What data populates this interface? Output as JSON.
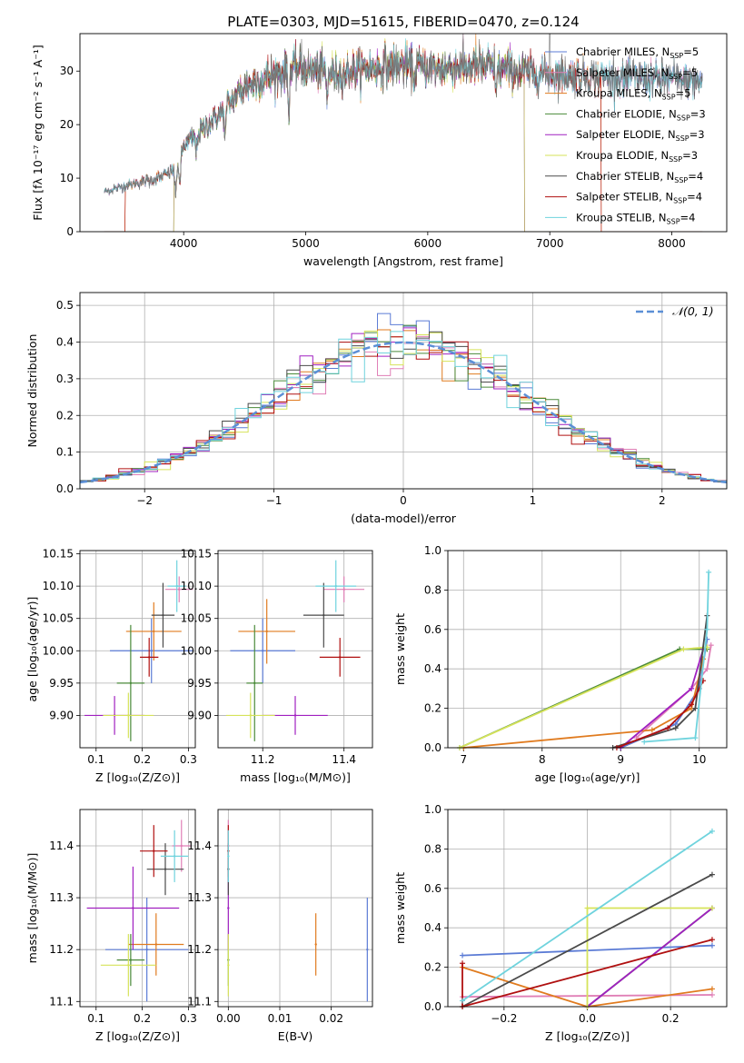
{
  "figure_title": "PLATE=0303, MJD=51615, FIBERID=0470, z=0.124",
  "colors": {
    "chabrier_miles": "#5b7bd5",
    "salpeter_miles": "#e07fb6",
    "kroupa_miles": "#e07b1f",
    "chabrier_elodie": "#4a8a3a",
    "salpeter_elodie": "#a020c0",
    "kroupa_elodie": "#d6e35a",
    "chabrier_stelib": "#4a4a4a",
    "salpeter_stelib": "#b01010",
    "kroupa_stelib": "#6fd3dd",
    "gaussian": "#5b8fd6"
  },
  "chart_data": [
    {
      "id": "spectrum",
      "type": "line",
      "title": "PLATE=0303, MJD=51615, FIBERID=0470, z=0.124",
      "xlabel": "wavelength [Angstrom, rest frame]",
      "ylabel": "Flux [fλ 10⁻¹⁷ erg cm⁻² s⁻¹ A⁻¹]",
      "xlim": [
        3150,
        8450
      ],
      "ylim": [
        0,
        37
      ],
      "xticks": [
        4000,
        5000,
        6000,
        7000,
        8000
      ],
      "yticks": [
        0,
        10,
        20,
        30
      ],
      "legend_position": "upper right",
      "series": [
        {
          "name": "Chabrier MILES, N_SSP=5",
          "color_key": "chabrier_miles"
        },
        {
          "name": "Salpeter MILES, N_SSP=5",
          "color_key": "salpeter_miles"
        },
        {
          "name": "Kroupa MILES, N_SSP=5",
          "color_key": "kroupa_miles"
        },
        {
          "name": "Chabrier ELODIE, N_SSP=3",
          "color_key": "chabrier_elodie"
        },
        {
          "name": "Salpeter ELODIE, N_SSP=3",
          "color_key": "salpeter_elodie"
        },
        {
          "name": "Kroupa ELODIE, N_SSP=3",
          "color_key": "kroupa_elodie"
        },
        {
          "name": "Chabrier STELIB, N_SSP=4",
          "color_key": "chabrier_stelib"
        },
        {
          "name": "Salpeter STELIB, N_SSP=4",
          "color_key": "salpeter_stelib"
        },
        {
          "name": "Kroupa STELIB, N_SSP=4",
          "color_key": "kroupa_stelib"
        }
      ],
      "continuum": {
        "x": [
          3350,
          3600,
          3800,
          3950,
          4000,
          4150,
          4300,
          4500,
          4700,
          4900,
          5100,
          5300,
          5500,
          5800,
          6100,
          6400,
          6700,
          7000,
          7300,
          7600,
          8000,
          8200
        ],
        "y": [
          7.5,
          9,
          10,
          12,
          16,
          19,
          22,
          27,
          29,
          30.5,
          30,
          29.5,
          30.5,
          31,
          30.5,
          31,
          30,
          29.5,
          29,
          28.8,
          28.5,
          28
        ]
      }
    },
    {
      "id": "residuals",
      "type": "bar",
      "xlabel": "(data-model)/error",
      "ylabel": "Normed distribution",
      "xlim": [
        -2.5,
        2.5
      ],
      "ylim": [
        0,
        0.535
      ],
      "xticks": [
        -2,
        -1,
        0,
        1,
        2
      ],
      "yticks": [
        0.0,
        0.1,
        0.2,
        0.3,
        0.4,
        0.5
      ],
      "legend_position": "upper right",
      "gaussian_label": "𝒩(0, 1)",
      "bin_width": 0.1
    },
    {
      "id": "age_vs_Z",
      "type": "scatter",
      "xlabel": "Z [log₁₀(Z/Z⊙)]",
      "ylabel": "age  [log₁₀(age/yr)]",
      "xlim": [
        0.065,
        0.315
      ],
      "ylim": [
        9.85,
        10.155
      ],
      "xticks": [
        0.1,
        0.2,
        0.3
      ],
      "yticks": [
        9.9,
        9.95,
        10.0,
        10.05,
        10.1,
        10.15
      ],
      "points": [
        {
          "color_key": "chabrier_miles",
          "x": 0.22,
          "y": 10.0,
          "xerr": 0.09,
          "yerr": 0.05
        },
        {
          "color_key": "salpeter_miles",
          "x": 0.28,
          "y": 10.095,
          "xerr": 0.03,
          "yerr": 0.02
        },
        {
          "color_key": "kroupa_miles",
          "x": 0.225,
          "y": 10.03,
          "xerr": 0.06,
          "yerr": 0.045
        },
        {
          "color_key": "chabrier_elodie",
          "x": 0.175,
          "y": 9.95,
          "xerr": 0.03,
          "yerr": 0.09
        },
        {
          "color_key": "salpeter_elodie",
          "x": 0.14,
          "y": 9.9,
          "xerr": 0.065,
          "yerr": 0.03
        },
        {
          "color_key": "kroupa_elodie",
          "x": 0.17,
          "y": 9.9,
          "xerr": 0.055,
          "yerr": 0.035
        },
        {
          "color_key": "chabrier_stelib",
          "x": 0.245,
          "y": 10.055,
          "xerr": 0.025,
          "yerr": 0.05
        },
        {
          "color_key": "salpeter_stelib",
          "x": 0.215,
          "y": 9.99,
          "xerr": 0.02,
          "yerr": 0.03
        },
        {
          "color_key": "kroupa_stelib",
          "x": 0.275,
          "y": 10.1,
          "xerr": 0.02,
          "yerr": 0.04
        }
      ]
    },
    {
      "id": "age_vs_mass",
      "type": "scatter",
      "xlabel": "mass [log₁₀(M/M⊙)]",
      "ylabel": "",
      "xlim": [
        11.09,
        11.47
      ],
      "ylim": [
        9.85,
        10.155
      ],
      "xticks": [
        11.2,
        11.4
      ],
      "yticks": [
        9.9,
        9.95,
        10.0,
        10.05,
        10.1,
        10.15
      ],
      "points": [
        {
          "color_key": "chabrier_miles",
          "x": 11.2,
          "y": 10.0,
          "xerr": 0.08,
          "yerr": 0.05
        },
        {
          "color_key": "salpeter_miles",
          "x": 11.4,
          "y": 10.095,
          "xerr": 0.05,
          "yerr": 0.02
        },
        {
          "color_key": "kroupa_miles",
          "x": 11.21,
          "y": 10.03,
          "xerr": 0.07,
          "yerr": 0.05
        },
        {
          "color_key": "chabrier_elodie",
          "x": 11.18,
          "y": 9.95,
          "xerr": 0.02,
          "yerr": 0.09
        },
        {
          "color_key": "salpeter_elodie",
          "x": 11.28,
          "y": 9.9,
          "xerr": 0.08,
          "yerr": 0.03
        },
        {
          "color_key": "kroupa_elodie",
          "x": 11.17,
          "y": 9.9,
          "xerr": 0.06,
          "yerr": 0.035
        },
        {
          "color_key": "chabrier_stelib",
          "x": 11.35,
          "y": 10.055,
          "xerr": 0.05,
          "yerr": 0.05
        },
        {
          "color_key": "salpeter_stelib",
          "x": 11.39,
          "y": 9.99,
          "xerr": 0.05,
          "yerr": 0.03
        },
        {
          "color_key": "kroupa_stelib",
          "x": 11.38,
          "y": 10.1,
          "xerr": 0.05,
          "yerr": 0.04
        }
      ]
    },
    {
      "id": "weight_vs_age",
      "type": "line",
      "xlabel": "age  [log₁₀(age/yr)]",
      "ylabel": "mass weight",
      "xlim": [
        6.8,
        10.35
      ],
      "ylim": [
        0,
        1.0
      ],
      "xticks": [
        7,
        8,
        9,
        10
      ],
      "yticks": [
        0.0,
        0.2,
        0.4,
        0.6,
        0.8,
        1.0
      ],
      "series": [
        {
          "color_key": "chabrier_miles",
          "x": [
            9.0,
            9.7,
            10.0,
            10.1
          ],
          "y": [
            0.0,
            0.12,
            0.3,
            0.55
          ]
        },
        {
          "color_key": "salpeter_miles",
          "x": [
            9.2,
            9.9,
            10.1,
            10.15
          ],
          "y": [
            0.05,
            0.3,
            0.4,
            0.52
          ]
        },
        {
          "color_key": "kroupa_miles",
          "x": [
            7.0,
            9.4,
            9.9,
            10.05
          ],
          "y": [
            0.0,
            0.09,
            0.2,
            0.45
          ]
        },
        {
          "color_key": "chabrier_elodie",
          "x": [
            6.95,
            9.75,
            10.1
          ],
          "y": [
            0.0,
            0.5,
            0.5
          ]
        },
        {
          "color_key": "salpeter_elodie",
          "x": [
            9.0,
            9.9,
            10.05
          ],
          "y": [
            0.0,
            0.3,
            0.5
          ]
        },
        {
          "color_key": "kroupa_elodie",
          "x": [
            6.95,
            9.8,
            10.1
          ],
          "y": [
            0.0,
            0.5,
            0.51
          ]
        },
        {
          "color_key": "chabrier_stelib",
          "x": [
            8.9,
            9.7,
            9.95,
            10.1
          ],
          "y": [
            0.0,
            0.1,
            0.2,
            0.67
          ]
        },
        {
          "color_key": "salpeter_stelib",
          "x": [
            8.95,
            9.6,
            9.9,
            10.05
          ],
          "y": [
            0.0,
            0.1,
            0.22,
            0.34
          ]
        },
        {
          "color_key": "kroupa_stelib",
          "x": [
            9.3,
            9.95,
            10.1,
            10.12
          ],
          "y": [
            0.03,
            0.05,
            0.6,
            0.89
          ]
        }
      ]
    },
    {
      "id": "mass_vs_Z",
      "type": "scatter",
      "xlabel": "Z [log₁₀(Z/Z⊙)]",
      "ylabel": "mass [log₁₀(M/M⊙)]",
      "xlim": [
        0.065,
        0.315
      ],
      "ylim": [
        11.09,
        11.47
      ],
      "xticks": [
        0.1,
        0.2,
        0.3
      ],
      "yticks": [
        11.1,
        11.2,
        11.3,
        11.4
      ],
      "points": [
        {
          "color_key": "chabrier_miles",
          "x": 0.21,
          "y": 11.2,
          "xerr": 0.09,
          "yerr": 0.1
        },
        {
          "color_key": "salpeter_miles",
          "x": 0.285,
          "y": 11.4,
          "xerr": 0.02,
          "yerr": 0.05
        },
        {
          "color_key": "kroupa_miles",
          "x": 0.23,
          "y": 11.21,
          "xerr": 0.06,
          "yerr": 0.06
        },
        {
          "color_key": "chabrier_elodie",
          "x": 0.175,
          "y": 11.18,
          "xerr": 0.03,
          "yerr": 0.05
        },
        {
          "color_key": "salpeter_elodie",
          "x": 0.18,
          "y": 11.28,
          "xerr": 0.1,
          "yerr": 0.08
        },
        {
          "color_key": "kroupa_elodie",
          "x": 0.17,
          "y": 11.17,
          "xerr": 0.06,
          "yerr": 0.06
        },
        {
          "color_key": "chabrier_stelib",
          "x": 0.25,
          "y": 11.355,
          "xerr": 0.04,
          "yerr": 0.05
        },
        {
          "color_key": "salpeter_stelib",
          "x": 0.225,
          "y": 11.39,
          "xerr": 0.03,
          "yerr": 0.05
        },
        {
          "color_key": "kroupa_stelib",
          "x": 0.27,
          "y": 11.38,
          "xerr": 0.03,
          "yerr": 0.05
        }
      ]
    },
    {
      "id": "mass_vs_ebv",
      "type": "scatter",
      "xlabel": "E(B-V)",
      "ylabel": "",
      "xlim": [
        -0.002,
        0.028
      ],
      "ylim": [
        11.09,
        11.47
      ],
      "xticks": [
        0.0,
        0.01,
        0.02
      ],
      "yticks": [
        11.1,
        11.2,
        11.3,
        11.4
      ],
      "points": [
        {
          "color_key": "chabrier_miles",
          "x": 0.027,
          "y": 11.2,
          "xerr": 0,
          "yerr": 0.1
        },
        {
          "color_key": "salpeter_miles",
          "x": 0.0,
          "y": 11.4,
          "xerr": 0,
          "yerr": 0.05
        },
        {
          "color_key": "kroupa_miles",
          "x": 0.017,
          "y": 11.21,
          "xerr": 0,
          "yerr": 0.06
        },
        {
          "color_key": "chabrier_elodie",
          "x": 0.0,
          "y": 11.18,
          "xerr": 0,
          "yerr": 0.05
        },
        {
          "color_key": "salpeter_elodie",
          "x": 0.0,
          "y": 11.28,
          "xerr": 0,
          "yerr": 0.08
        },
        {
          "color_key": "kroupa_elodie",
          "x": 0.0,
          "y": 11.17,
          "xerr": 0,
          "yerr": 0.06
        },
        {
          "color_key": "chabrier_stelib",
          "x": 0.0,
          "y": 11.355,
          "xerr": 0,
          "yerr": 0.05
        },
        {
          "color_key": "salpeter_stelib",
          "x": 0.0,
          "y": 11.39,
          "xerr": 0,
          "yerr": 0.05
        },
        {
          "color_key": "kroupa_stelib",
          "x": 0.0,
          "y": 11.38,
          "xerr": 0,
          "yerr": 0.05
        }
      ]
    },
    {
      "id": "weight_vs_Z",
      "type": "line",
      "xlabel": "Z [log₁₀(Z/Z⊙)]",
      "ylabel": "mass weight",
      "xlim": [
        -0.335,
        0.335
      ],
      "ylim": [
        0,
        1.0
      ],
      "xticks": [
        -0.2,
        0.0,
        0.2
      ],
      "yticks": [
        0.0,
        0.2,
        0.4,
        0.6,
        0.8,
        1.0
      ],
      "series": [
        {
          "color_key": "chabrier_miles",
          "x": [
            -0.3,
            0.3
          ],
          "y": [
            0.26,
            0.31
          ]
        },
        {
          "color_key": "salpeter_miles",
          "x": [
            -0.3,
            0.3
          ],
          "y": [
            0.05,
            0.06
          ]
        },
        {
          "color_key": "kroupa_miles",
          "x": [
            -0.3,
            0.0,
            0.3
          ],
          "y": [
            0.2,
            0.0,
            0.09
          ]
        },
        {
          "color_key": "chabrier_elodie",
          "x": [
            0.0,
            0.3
          ],
          "y": [
            0.0,
            0.5
          ]
        },
        {
          "color_key": "salpeter_elodie",
          "x": [
            0.0,
            0.3
          ],
          "y": [
            0.0,
            0.5
          ]
        },
        {
          "color_key": "kroupa_elodie",
          "x": [
            0.0,
            0.0,
            0.3
          ],
          "y": [
            0.0,
            0.5,
            0.5
          ]
        },
        {
          "color_key": "chabrier_stelib",
          "x": [
            -0.3,
            0.3
          ],
          "y": [
            0.0,
            0.67
          ]
        },
        {
          "color_key": "salpeter_stelib",
          "x": [
            -0.3,
            -0.3,
            0.3
          ],
          "y": [
            0.22,
            0.0,
            0.34
          ]
        },
        {
          "color_key": "kroupa_stelib",
          "x": [
            -0.3,
            0.3
          ],
          "y": [
            0.03,
            0.89
          ]
        }
      ]
    }
  ]
}
